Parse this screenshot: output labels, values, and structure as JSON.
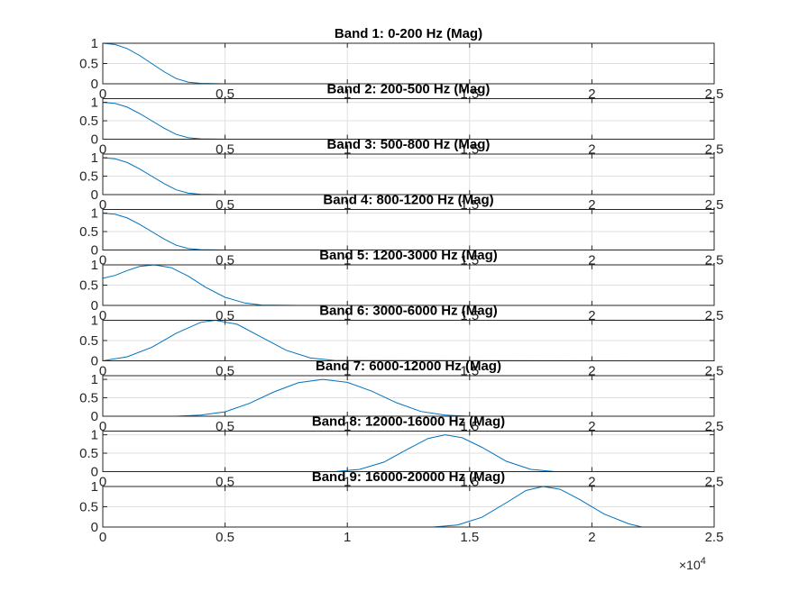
{
  "chart_data": {
    "type": "line",
    "exponent_label": "×10",
    "exponent_power": "4",
    "x_tick_labels": [
      "0",
      "0.5",
      "1",
      "1.5",
      "2",
      "2.5"
    ],
    "x_ticks": [
      0,
      5000,
      10000,
      15000,
      20000,
      25000
    ],
    "xlim": [
      0,
      25000
    ],
    "grid": true,
    "panels": [
      {
        "title": "Band 1: 0-200 Hz (Mag)",
        "ylim": [
          0,
          1
        ],
        "y_ticks": [
          0,
          0.5,
          1
        ],
        "y_tick_labels": [
          "0",
          "0.5",
          "1"
        ],
        "series": [
          {
            "x": [
              0,
              500,
              1000,
              1500,
              2000,
              2500,
              3000,
              3500,
              4000,
              5000,
              8000,
              22050
            ],
            "y": [
              1,
              0.97,
              0.87,
              0.7,
              0.5,
              0.3,
              0.13,
              0.04,
              0.01,
              0,
              0,
              0
            ]
          }
        ]
      },
      {
        "title": "Band 2: 200-500 Hz (Mag)",
        "ylim": [
          0,
          1.1
        ],
        "y_ticks": [
          0,
          0.5,
          1
        ],
        "y_tick_labels": [
          "0",
          "0.5",
          "1"
        ],
        "series": [
          {
            "x": [
              0,
              500,
              1000,
              1500,
              2000,
              2500,
              3000,
              3500,
              4000,
              5000,
              8000,
              22050
            ],
            "y": [
              1,
              0.97,
              0.87,
              0.7,
              0.5,
              0.3,
              0.13,
              0.04,
              0.01,
              0,
              0,
              0
            ]
          }
        ]
      },
      {
        "title": "Band 3: 500-800 Hz (Mag)",
        "ylim": [
          0,
          1.1
        ],
        "y_ticks": [
          0,
          0.5,
          1
        ],
        "y_tick_labels": [
          "0",
          "0.5",
          "1"
        ],
        "series": [
          {
            "x": [
              0,
              500,
              1000,
              1500,
              2000,
              2500,
              3000,
              3500,
              4000,
              5000,
              8000,
              22050
            ],
            "y": [
              1,
              0.97,
              0.87,
              0.7,
              0.5,
              0.3,
              0.13,
              0.04,
              0.01,
              0,
              0,
              0
            ]
          }
        ]
      },
      {
        "title": "Band 4: 800-1200 Hz (Mag)",
        "ylim": [
          0,
          1.1
        ],
        "y_ticks": [
          0,
          0.5,
          1
        ],
        "y_tick_labels": [
          "0",
          "0.5",
          "1"
        ],
        "series": [
          {
            "x": [
              0,
              500,
              1000,
              1500,
              2000,
              2500,
              3000,
              3500,
              4000,
              5000,
              8000,
              22050
            ],
            "y": [
              1,
              0.97,
              0.87,
              0.7,
              0.5,
              0.3,
              0.13,
              0.04,
              0.01,
              0,
              0,
              0
            ]
          }
        ]
      },
      {
        "title": "Band 5: 1200-3000 Hz (Mag)",
        "ylim": [
          0,
          1
        ],
        "y_ticks": [
          0,
          0.5,
          1
        ],
        "y_tick_labels": [
          "0",
          "0.5",
          "1"
        ],
        "series": [
          {
            "x": [
              0,
              500,
              1000,
              1500,
              2100,
              2800,
              3500,
              4200,
              5000,
              5800,
              6500,
              8000,
              22050
            ],
            "y": [
              0.67,
              0.74,
              0.86,
              0.96,
              1,
              0.93,
              0.72,
              0.45,
              0.2,
              0.06,
              0.01,
              0,
              0
            ]
          }
        ]
      },
      {
        "title": "Band 6: 3000-6000 Hz (Mag)",
        "ylim": [
          0,
          1
        ],
        "y_ticks": [
          0,
          0.5,
          1
        ],
        "y_tick_labels": [
          "0",
          "0.5",
          "1"
        ],
        "series": [
          {
            "x": [
              0,
              1000,
              2000,
              3000,
              4000,
              4600,
              5500,
              6500,
              7500,
              8500,
              9500,
              22050
            ],
            "y": [
              0,
              0.1,
              0.33,
              0.68,
              0.95,
              1,
              0.9,
              0.58,
              0.26,
              0.07,
              0.01,
              0
            ]
          }
        ]
      },
      {
        "title": "Band 7: 6000-12000 Hz (Mag)",
        "ylim": [
          0,
          1.1
        ],
        "y_ticks": [
          0,
          0.5,
          1
        ],
        "y_tick_labels": [
          "0",
          "0.5",
          "1"
        ],
        "series": [
          {
            "x": [
              0,
              3000,
              4000,
              5000,
              6000,
              7000,
              8000,
              9000,
              10000,
              11000,
              12000,
              13000,
              14000,
              15000,
              22050
            ],
            "y": [
              0,
              0,
              0.03,
              0.12,
              0.35,
              0.66,
              0.91,
              1,
              0.92,
              0.68,
              0.37,
              0.13,
              0.03,
              0,
              0
            ]
          }
        ]
      },
      {
        "title": "Band 8: 12000-16000 Hz (Mag)",
        "ylim": [
          0,
          1.1
        ],
        "y_ticks": [
          0,
          0.5,
          1
        ],
        "y_tick_labels": [
          "0",
          "0.5",
          "1"
        ],
        "series": [
          {
            "x": [
              0,
              9500,
              10500,
              11500,
              12500,
              13300,
              14000,
              14700,
              15500,
              16500,
              17500,
              18500,
              22050
            ],
            "y": [
              0,
              0,
              0.06,
              0.26,
              0.62,
              0.9,
              1,
              0.92,
              0.66,
              0.28,
              0.06,
              0,
              0
            ]
          }
        ]
      },
      {
        "title": "Band 9: 16000-20000 Hz (Mag)",
        "ylim": [
          0,
          1
        ],
        "y_ticks": [
          0,
          0.5,
          1
        ],
        "y_tick_labels": [
          "0",
          "0.5",
          "1"
        ],
        "series": [
          {
            "x": [
              0,
              13500,
              14500,
              15500,
              16500,
              17300,
              18000,
              18700,
              19500,
              20500,
              21500,
              22050
            ],
            "y": [
              0,
              0,
              0.05,
              0.24,
              0.6,
              0.9,
              1,
              0.93,
              0.68,
              0.32,
              0.08,
              0
            ]
          }
        ]
      }
    ]
  }
}
